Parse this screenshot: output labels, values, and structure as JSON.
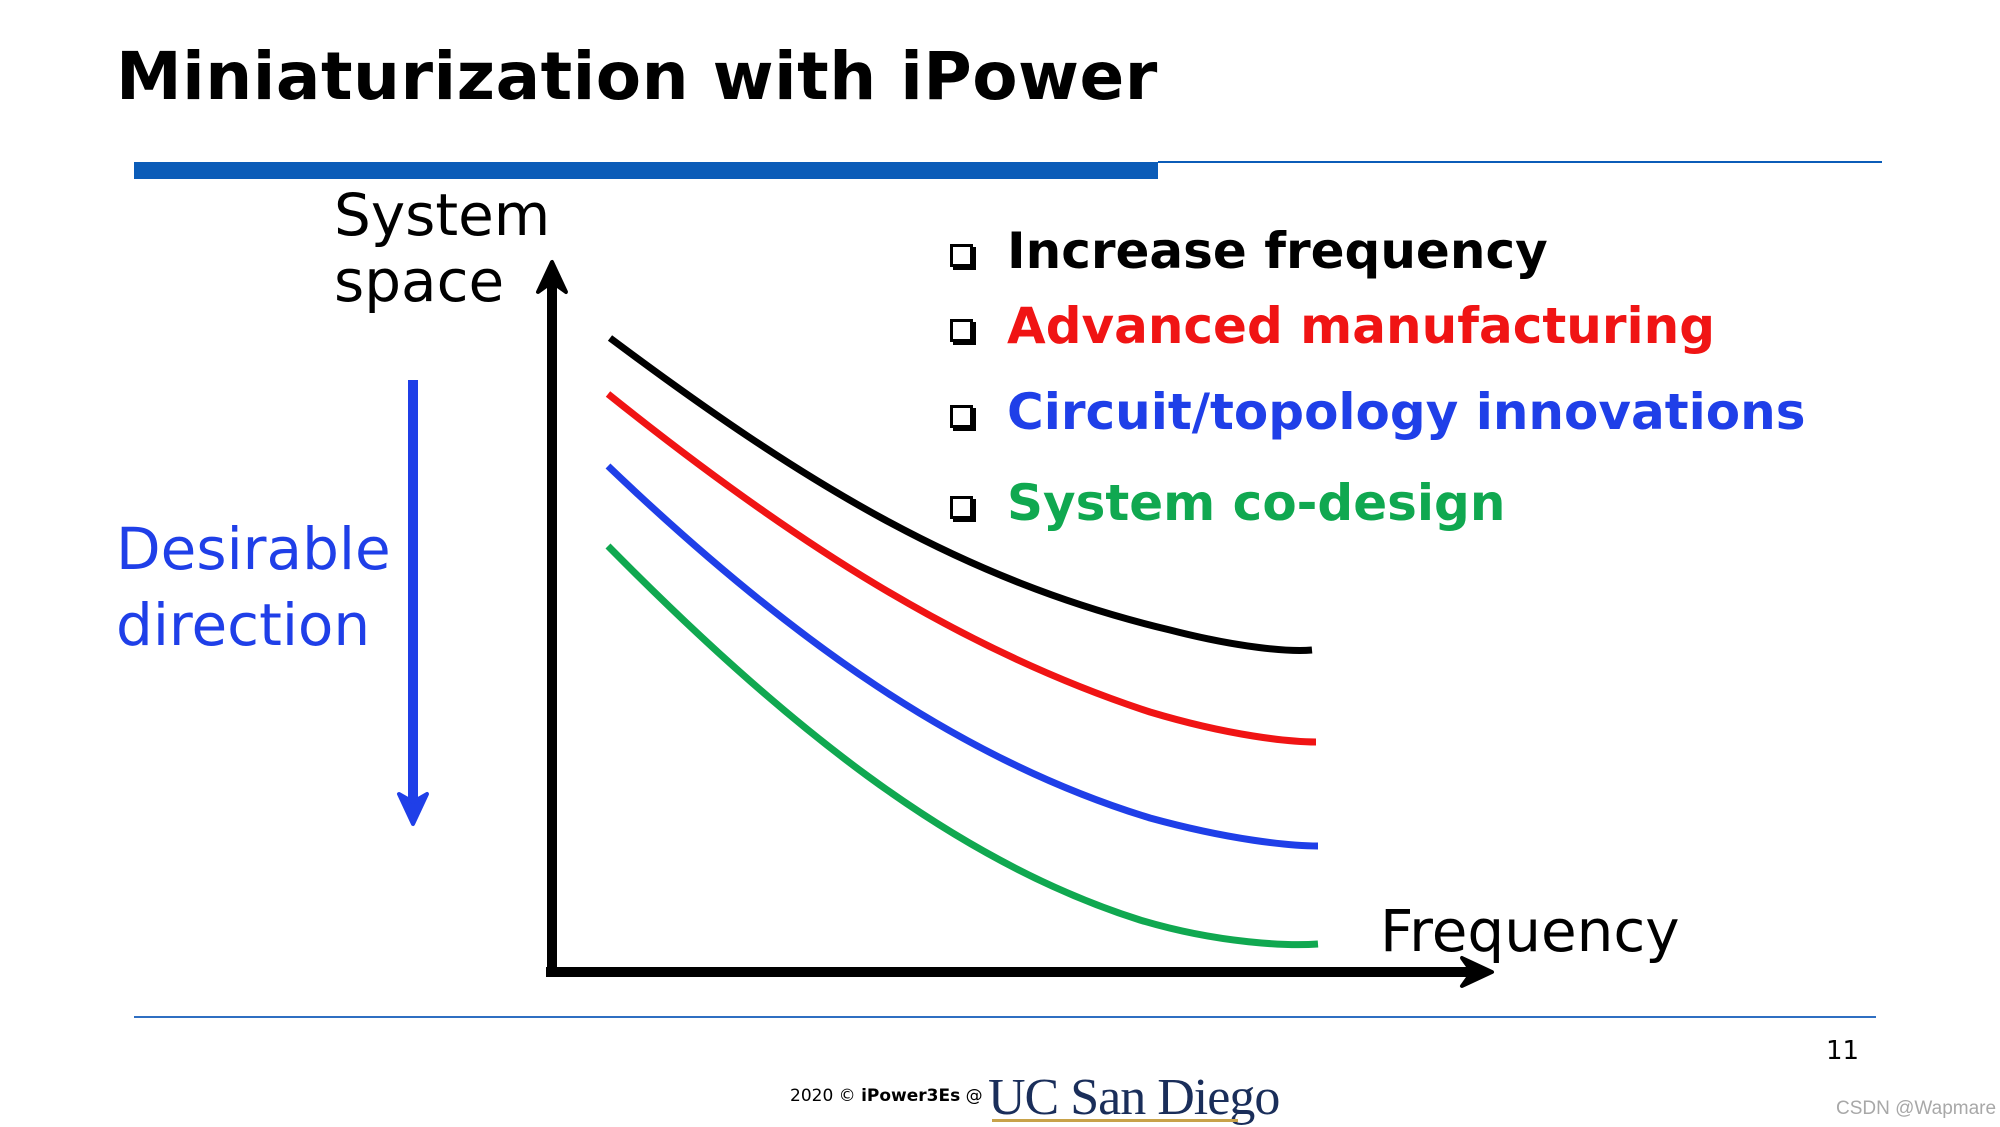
{
  "slide": {
    "title": "Miniaturization with iPower",
    "page_number": "11"
  },
  "axes": {
    "y_label_line1": "System",
    "y_label_line2": "space",
    "x_label": "Frequency"
  },
  "direction": {
    "line1": "Desirable",
    "line2": "direction",
    "color": "#1f3fe8"
  },
  "legend": {
    "items": [
      {
        "label": "Increase frequency",
        "color": "#000000"
      },
      {
        "label": "Advanced manufacturing",
        "color": "#f01414"
      },
      {
        "label": "Circuit/topology innovations",
        "color": "#1f3fe8"
      },
      {
        "label": "System co-design",
        "color": "#10a850"
      }
    ]
  },
  "footer": {
    "prefix": "2020 © ",
    "brand": "iPower3Es",
    "suffix": " @",
    "logo": "UC San Diego"
  },
  "watermark": "CSDN @Wapmare",
  "colors": {
    "accent_bar": "#0b5cb8",
    "axis": "#000000"
  }
}
